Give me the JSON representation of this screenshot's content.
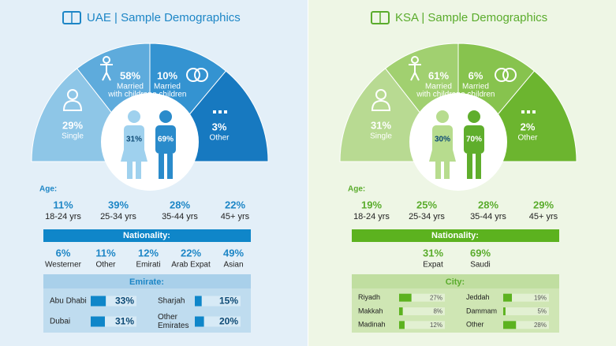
{
  "panels": [
    {
      "title": "UAE | Sample Demographics",
      "marital": [
        {
          "pct": "29%",
          "label": [
            "Single"
          ]
        },
        {
          "pct": "58%",
          "label": [
            "Married",
            "with children"
          ]
        },
        {
          "pct": "10%",
          "label": [
            "Married",
            "no children"
          ]
        },
        {
          "pct": "3%",
          "label": [
            "Other"
          ]
        }
      ],
      "gender": {
        "female": "31%",
        "male": "69%"
      },
      "age_title": "Age:",
      "ages": [
        {
          "pct": "11%",
          "label": "18-24 yrs"
        },
        {
          "pct": "39%",
          "label": "25-34 yrs"
        },
        {
          "pct": "28%",
          "label": "35-44 yrs"
        },
        {
          "pct": "22%",
          "label": "45+ yrs"
        }
      ],
      "nationality_title": "Nationality:",
      "nationalities": [
        {
          "pct": "6%",
          "label": "Westerner"
        },
        {
          "pct": "11%",
          "label": "Other"
        },
        {
          "pct": "12%",
          "label": "Emirati"
        },
        {
          "pct": "22%",
          "label": "Arab Expat"
        },
        {
          "pct": "49%",
          "label": "Asian"
        }
      ],
      "region_title": "Emirate:",
      "regions": [
        {
          "name": [
            "Abu Dhabi"
          ],
          "value": 33,
          "value_label": "33%"
        },
        {
          "name": [
            "Dubai"
          ],
          "value": 31,
          "value_label": "31%"
        },
        {
          "name": [
            "Sharjah"
          ],
          "value": 15,
          "value_label": "15%"
        },
        {
          "name": [
            "Other",
            "Emirates"
          ],
          "value": 20,
          "value_label": "20%"
        }
      ]
    },
    {
      "title": "KSA | Sample Demographics",
      "marital": [
        {
          "pct": "31%",
          "label": [
            "Single"
          ]
        },
        {
          "pct": "61%",
          "label": [
            "Married",
            "with children"
          ]
        },
        {
          "pct": "6%",
          "label": [
            "Married",
            "no children"
          ]
        },
        {
          "pct": "2%",
          "label": [
            "Other"
          ]
        }
      ],
      "gender": {
        "female": "30%",
        "male": "70%"
      },
      "age_title": "Age:",
      "ages": [
        {
          "pct": "19%",
          "label": "18-24 yrs"
        },
        {
          "pct": "25%",
          "label": "25-34 yrs"
        },
        {
          "pct": "28%",
          "label": "35-44 yrs"
        },
        {
          "pct": "29%",
          "label": "45+ yrs"
        }
      ],
      "nationality_title": "Nationality:",
      "nationalities": [
        {
          "pct": "31%",
          "label": "Expat"
        },
        {
          "pct": "69%",
          "label": "Saudi"
        }
      ],
      "region_title": "City:",
      "regions": [
        {
          "name": [
            "Riyadh"
          ],
          "value": 27,
          "value_label": "27%"
        },
        {
          "name": [
            "Makkah"
          ],
          "value": 8,
          "value_label": "8%"
        },
        {
          "name": [
            "Madinah"
          ],
          "value": 12,
          "value_label": "12%"
        },
        {
          "name": [
            "Jeddah"
          ],
          "value": 19,
          "value_label": "19%"
        },
        {
          "name": [
            "Dammam"
          ],
          "value": 5,
          "value_label": "5%"
        },
        {
          "name": [
            "Other"
          ],
          "value": 28,
          "value_label": "28%"
        }
      ]
    }
  ]
}
